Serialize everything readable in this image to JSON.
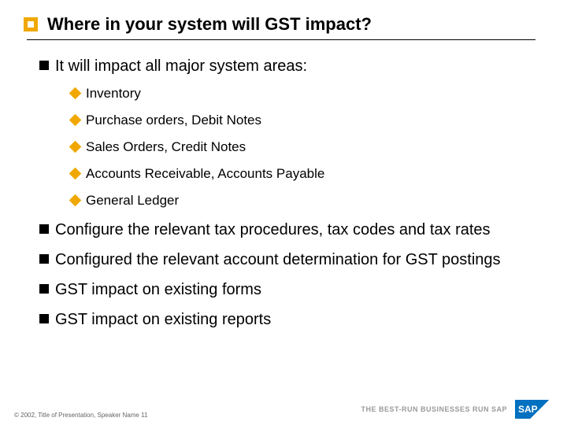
{
  "colors": {
    "accent": "#f0a800",
    "text": "#000000",
    "footer_text": "#666666",
    "tagline": "#9a9a9a",
    "sap_blue": "#0070c0",
    "background": "#ffffff"
  },
  "title": "Where in your system will GST impact?",
  "items": [
    {
      "text": "It will impact all major system areas:",
      "sub": [
        "Inventory",
        "Purchase orders, Debit Notes",
        "Sales Orders, Credit Notes",
        "Accounts Receivable, Accounts Payable",
        "General Ledger"
      ]
    },
    {
      "text": "Configure the relevant tax procedures, tax codes and tax rates"
    },
    {
      "text": "Configured the relevant account determination for GST postings"
    },
    {
      "text": "GST impact on existing forms"
    },
    {
      "text": "GST impact on existing reports"
    }
  ],
  "footer": {
    "left": "© 2002, Title of Presentation, Speaker Name  11",
    "tagline": "THE BEST-RUN BUSINESSES RUN SAP",
    "logo_text": "SAP"
  }
}
